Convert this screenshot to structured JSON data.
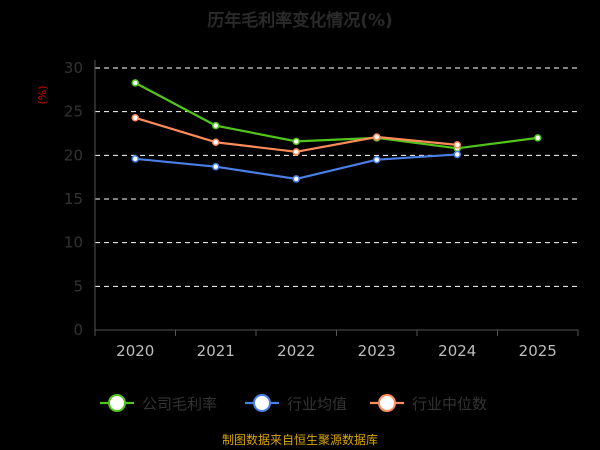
{
  "chart_data": {
    "type": "line",
    "title": "历年毛利率变化情况(%)",
    "ylabel": "(%)",
    "xlabel": "",
    "categories": [
      "2020",
      "2021",
      "2022",
      "2023",
      "2024",
      "2025"
    ],
    "ylim": [
      0,
      30
    ],
    "yticks": [
      0,
      5,
      10,
      15,
      20,
      25,
      30
    ],
    "grid": true,
    "legend_position": "bottom",
    "series": [
      {
        "name": "公司毛利率",
        "color": "#52c41a",
        "values": [
          28.3,
          23.4,
          21.6,
          22.0,
          20.8,
          22.0
        ]
      },
      {
        "name": "行业均值",
        "color": "#4a7fe6",
        "values": [
          19.6,
          18.7,
          17.3,
          19.5,
          20.1,
          null
        ]
      },
      {
        "name": "行业中位数",
        "color": "#ff8c5a",
        "values": [
          24.3,
          21.5,
          20.4,
          22.1,
          21.2,
          null
        ]
      }
    ]
  },
  "source_text": "制图数据来自恒生聚源数据库"
}
